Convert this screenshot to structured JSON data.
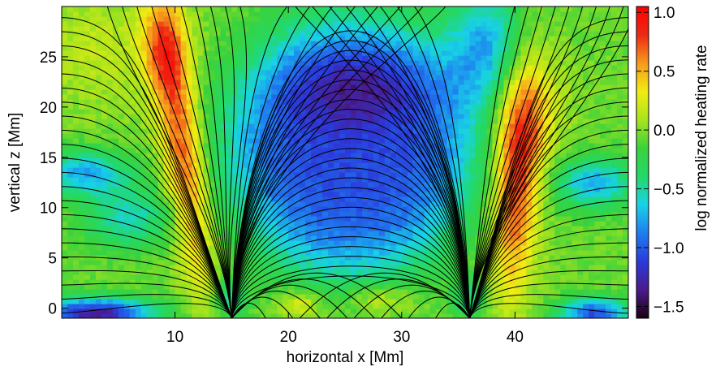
{
  "chart_data": {
    "type": "heatmap",
    "title": "",
    "xlabel": "horizontal x [Mm]",
    "ylabel": "vertical z [Mm]",
    "colorbar_label": "log normalized heating rate",
    "xlim": [
      0,
      50
    ],
    "ylim": [
      -1,
      30
    ],
    "x_ticks": [
      10,
      20,
      30,
      40
    ],
    "y_ticks": [
      0,
      5,
      10,
      15,
      20,
      25
    ],
    "colorbar_range": [
      -1.6,
      1.05
    ],
    "colorbar_ticks": [
      1.0,
      0.5,
      0.0,
      -0.5,
      -1.0,
      -1.5
    ],
    "colorbar_tick_labels": [
      "1.0",
      "0.5",
      "0.0",
      "−0.5",
      "−1.0",
      "−1.5"
    ],
    "colormap": [
      "#1a0010",
      "#4b1a8c",
      "#2a3adc",
      "#1f7cf0",
      "#18d2e6",
      "#22d96a",
      "#3ad23c",
      "#a8e41c",
      "#f2ec12",
      "#f79a1c",
      "#ec2a14",
      "#ff0000"
    ],
    "magnetic_footpoints_x": [
      15.0,
      36.0
    ],
    "field_lines": "black magnetic field lines fanning out from footpoints at x≈15 Mm and x≈36 Mm, arching between them and to the domain edges",
    "grid": false,
    "legend": "colorbar right"
  }
}
